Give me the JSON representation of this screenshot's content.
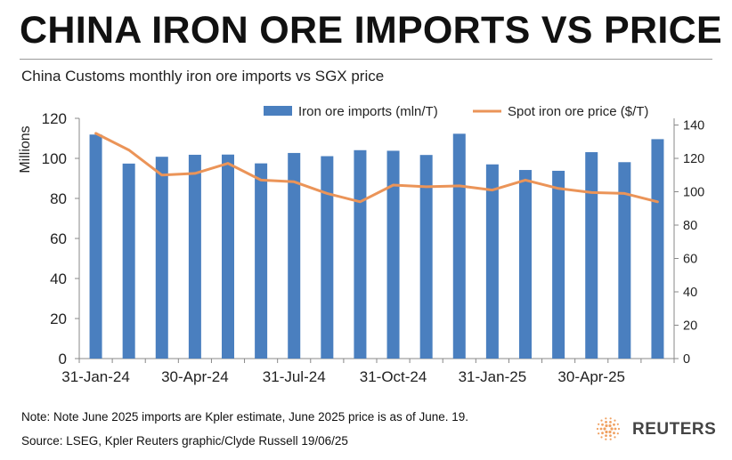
{
  "header": {
    "title": "CHINA IRON ORE IMPORTS VS PRICE",
    "subtitle": "China Customs monthly iron ore imports vs SGX price"
  },
  "footer": {
    "note": "Note: Note June 2025 imports are Kpler estimate, June 2025 price is as of June. 19.",
    "source": "Source: LSEG, Kpler     Reuters graphic/Clyde Russell 19/06/25",
    "logo_text": "REUTERS"
  },
  "colors": {
    "bar": "#4a7fbf",
    "line": "#eb9458",
    "axis": "#888888",
    "logo": "#f0a060"
  },
  "chart_data": {
    "type": "bar+line",
    "ylabel": "Millions",
    "legend_position": "top-right",
    "grid": false,
    "x_tick_labels": [
      "31-Jan-24",
      "30-Apr-24",
      "31-Jul-24",
      "31-Oct-24",
      "31-Jan-25",
      "30-Apr-25"
    ],
    "x_tick_indices": [
      0,
      3,
      6,
      9,
      12,
      15
    ],
    "categories": [
      "Jan-24",
      "Feb-24",
      "Mar-24",
      "Apr-24",
      "May-24",
      "Jun-24",
      "Jul-24",
      "Aug-24",
      "Sep-24",
      "Oct-24",
      "Nov-24",
      "Dec-24",
      "Jan-25",
      "Feb-25",
      "Mar-25",
      "Apr-25",
      "May-25",
      "Jun-25"
    ],
    "y_left": {
      "ticks": [
        0,
        20,
        40,
        60,
        80,
        100,
        120
      ],
      "lim": [
        0,
        120
      ]
    },
    "y_right": {
      "ticks": [
        0,
        20,
        40,
        60,
        80,
        100,
        120,
        140
      ],
      "lim": [
        0,
        144
      ]
    },
    "series": [
      {
        "name": "Iron ore imports (mln/T)",
        "type": "bar",
        "axis": "left",
        "values": [
          111.9,
          97.4,
          100.8,
          101.8,
          101.9,
          97.5,
          102.7,
          101.1,
          104.1,
          103.8,
          101.7,
          112.3,
          97.0,
          94.2,
          93.8,
          103.1,
          98.1,
          109.6
        ]
      },
      {
        "name": "Spot iron ore price ($/T)",
        "type": "line",
        "axis": "right",
        "values": [
          135,
          125,
          110,
          111,
          117,
          107,
          106,
          99,
          94,
          104,
          103,
          103.5,
          101,
          107,
          102,
          99.5,
          99,
          94
        ]
      }
    ]
  }
}
